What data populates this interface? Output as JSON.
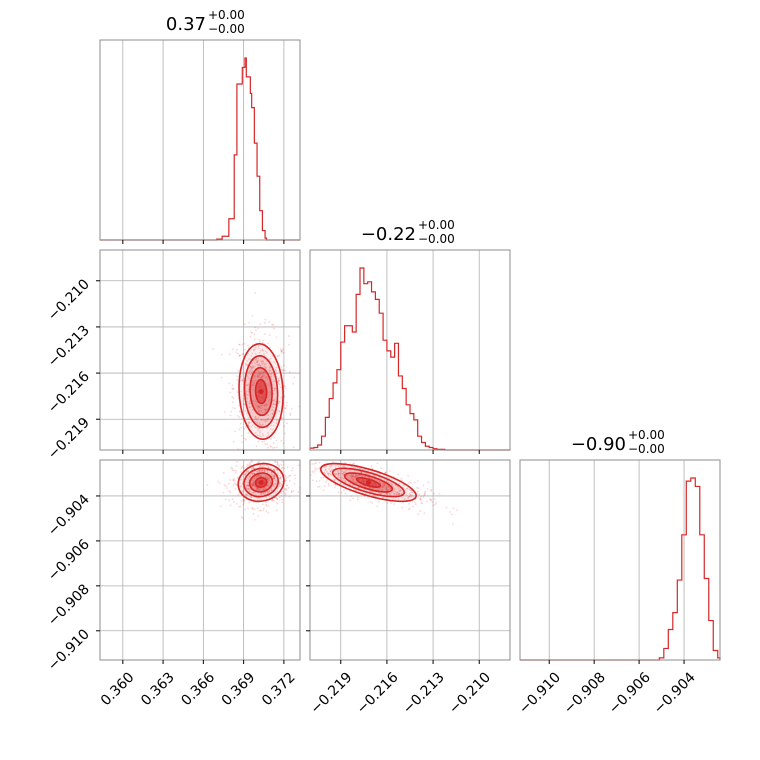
{
  "colors": {
    "series": "#d62728",
    "frame": "#8c8c8c",
    "grid": "#b0b0b0",
    "fill": "#d62728"
  },
  "chart_data": {
    "type": "corner",
    "grid": true,
    "parameters": [
      {
        "title_value": "0.37",
        "title_plus": "+0.00",
        "title_minus": "−0.00",
        "center": 0.3703,
        "range": [
          0.3583,
          0.3732
        ]
      },
      {
        "title_value": "−0.22",
        "title_plus": "+0.00",
        "title_minus": "−0.00",
        "center": -0.2172,
        "range": [
          -0.221,
          -0.208
        ]
      },
      {
        "title_value": "−0.90",
        "title_plus": "+0.00",
        "title_minus": "−0.00",
        "center": -0.9034,
        "range": [
          -0.9113,
          -0.9024
        ]
      }
    ],
    "histograms": [
      {
        "param": 0,
        "bin_edges": [
          0.3583,
          0.367,
          0.3674,
          0.3679,
          0.3683,
          0.3685,
          0.3689,
          0.3691,
          0.3692,
          0.3695,
          0.3696,
          0.3698,
          0.37,
          0.3702,
          0.3704,
          0.3706,
          0.3707,
          0.3709,
          0.3711,
          0.3713,
          0.3715,
          0.3718,
          0.3732
        ],
        "counts": [
          0,
          2,
          8,
          45,
          180,
          330,
          365,
          385,
          345,
          310,
          280,
          205,
          135,
          62,
          20,
          4,
          0,
          0,
          0,
          0,
          0,
          0
        ]
      },
      {
        "param": 1,
        "bin_edges": [
          -0.221,
          -0.22075,
          -0.2205,
          -0.22025,
          -0.22,
          -0.21975,
          -0.2195,
          -0.21925,
          -0.219,
          -0.21875,
          -0.2185,
          -0.21825,
          -0.218,
          -0.21775,
          -0.2175,
          -0.21725,
          -0.217,
          -0.21675,
          -0.2165,
          -0.21625,
          -0.216,
          -0.21575,
          -0.2155,
          -0.21525,
          -0.215,
          -0.21475,
          -0.2145,
          -0.21425,
          -0.214,
          -0.21375,
          -0.2135,
          -0.21325,
          -0.213,
          -0.21275,
          -0.2125,
          -0.21225,
          -0.212,
          -0.21175,
          -0.2115,
          -0.211,
          -0.208
        ],
        "counts": [
          3,
          4,
          8,
          22,
          52,
          82,
          107,
          128,
          172,
          198,
          198,
          188,
          248,
          290,
          265,
          268,
          252,
          240,
          218,
          175,
          158,
          148,
          170,
          118,
          98,
          72,
          58,
          48,
          22,
          12,
          6,
          4,
          2,
          1,
          1,
          0,
          0,
          0,
          0,
          0
        ]
      },
      {
        "param": 2,
        "bin_edges": [
          -0.9113,
          -0.9051,
          -0.9049,
          -0.9047,
          -0.9045,
          -0.9043,
          -0.9041,
          -0.9039,
          -0.9037,
          -0.9035,
          -0.9033,
          -0.9031,
          -0.9029,
          -0.9027,
          -0.9025,
          -0.9024
        ],
        "counts": [
          0,
          4,
          22,
          58,
          90,
          152,
          238,
          340,
          346,
          330,
          238,
          155,
          75,
          18,
          4
        ]
      }
    ],
    "contours": [
      {
        "x": 0,
        "y": 1,
        "center": [
          0.3703,
          -0.2172
        ],
        "sigma": [
          0.00082,
          0.00155
        ],
        "rho": -0.08
      },
      {
        "x": 0,
        "y": 2,
        "center": [
          0.3703,
          -0.9034
        ],
        "sigma": [
          0.00085,
          0.00042
        ],
        "rho": 0.1
      },
      {
        "x": 1,
        "y": 2,
        "center": [
          -0.2172,
          -0.9034
        ],
        "sigma": [
          0.00155,
          0.00042
        ],
        "rho": -0.7
      }
    ],
    "ticks": [
      [
        0.36,
        0.363,
        0.366,
        0.369,
        0.372
      ],
      [
        -0.219,
        -0.216,
        -0.213,
        -0.21
      ],
      [
        -0.91,
        -0.908,
        -0.906,
        -0.904
      ]
    ],
    "tick_labels": [
      [
        "0.360",
        "0.363",
        "0.366",
        "0.369",
        "0.372"
      ],
      [
        "−0.219",
        "−0.216",
        "−0.213",
        "−0.210"
      ],
      [
        "−0.910",
        "−0.908",
        "−0.906",
        "−0.904"
      ]
    ],
    "y_ticks_row1": [
      -0.219,
      -0.216,
      -0.213,
      -0.21
    ],
    "y_tick_labels_row1": [
      "−0.219",
      "−0.216",
      "−0.213",
      "−0.210"
    ],
    "y_ticks_row2": [
      -0.91,
      -0.908,
      -0.906,
      -0.904
    ],
    "y_tick_labels_row2": [
      "−0.910",
      "−0.908",
      "−0.906",
      "−0.904"
    ],
    "contour_levels_sigma": [
      0.5,
      1.0,
      1.5,
      2.0
    ]
  }
}
